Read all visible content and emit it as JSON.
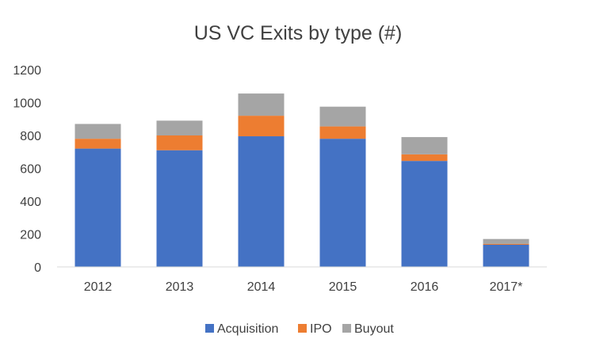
{
  "chart_data": {
    "type": "bar",
    "stacked": true,
    "title": "US VC Exits by type (#)",
    "xlabel": "",
    "ylabel": "",
    "categories": [
      "2012",
      "2013",
      "2014",
      "2015",
      "2016",
      "2017*"
    ],
    "series": [
      {
        "name": "Acquisition",
        "color": "#4472C4",
        "values": [
          720,
          710,
          795,
          780,
          645,
          135
        ]
      },
      {
        "name": "IPO",
        "color": "#ED7D31",
        "values": [
          60,
          90,
          125,
          75,
          40,
          5
        ]
      },
      {
        "name": "Buyout",
        "color": "#A5A5A5",
        "values": [
          90,
          90,
          135,
          120,
          105,
          30
        ]
      }
    ],
    "ylim": [
      0,
      1200
    ],
    "yticks": [
      "0",
      "200",
      "400",
      "600",
      "800",
      "1000",
      "1200"
    ],
    "grid": false,
    "legend": "bottom"
  }
}
